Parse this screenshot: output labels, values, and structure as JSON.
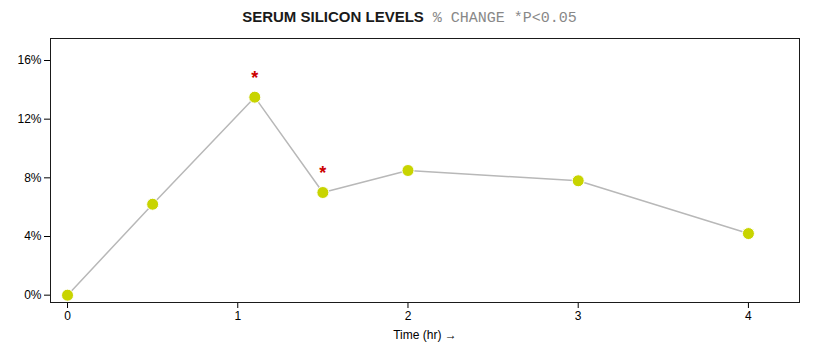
{
  "chart_data": {
    "type": "line",
    "title": "SERUM SILICON LEVELS",
    "subtitle": "% CHANGE *P<0.05",
    "x": [
      0,
      0.5,
      1.1,
      1.5,
      2.0,
      3.0,
      4.0
    ],
    "series": [
      {
        "type": "line",
        "color": "#b8b8b8",
        "values": [
          0.0,
          0.062,
          0.135,
          0.07,
          0.085,
          0.078,
          0.042
        ]
      },
      {
        "type": "scatter",
        "color": "#c8d400",
        "marker": "o",
        "values": [
          0.0,
          0.062,
          0.135,
          0.07,
          0.085,
          0.078,
          0.042
        ]
      }
    ],
    "annotations": [
      {
        "x": 1.1,
        "y": 0.148,
        "text": "*",
        "color": "#cc0000"
      },
      {
        "x": 1.5,
        "y": 0.083,
        "text": "*",
        "color": "#cc0000"
      }
    ],
    "xlabel": "Time (hr)",
    "xlim": [
      -0.1,
      4.3
    ],
    "xticks": [
      0,
      1,
      2,
      3,
      4
    ],
    "ylim": [
      -0.005,
      0.175
    ],
    "yticks": [
      {
        "value": 0.0,
        "label": "0%"
      },
      {
        "value": 0.04,
        "label": "4%"
      },
      {
        "value": 0.08,
        "label": "8%"
      },
      {
        "value": 0.12,
        "label": "12%"
      },
      {
        "value": 0.16,
        "label": "16%"
      }
    ],
    "grid": false
  }
}
